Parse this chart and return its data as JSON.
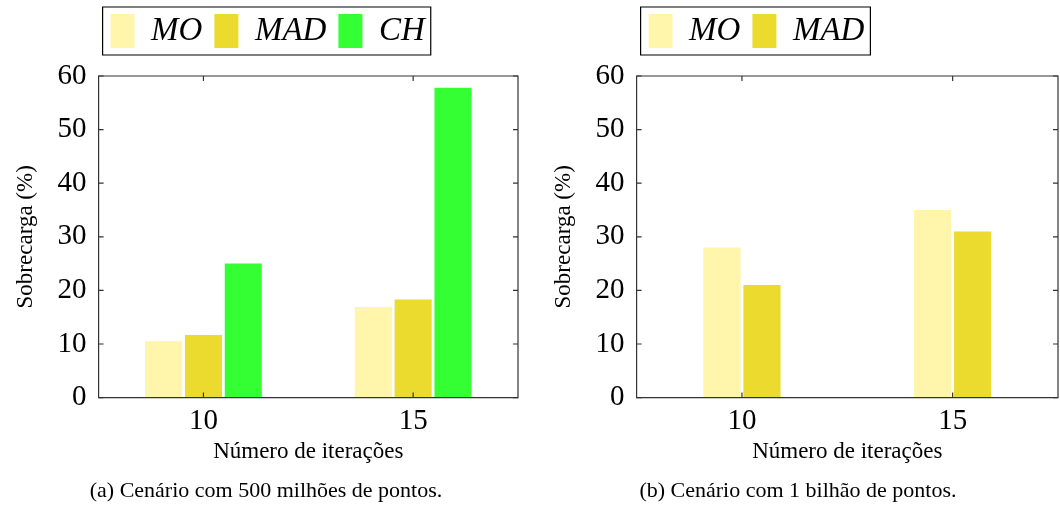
{
  "chart_data": [
    {
      "type": "bar",
      "categories": [
        "10",
        "15"
      ],
      "series": [
        {
          "name": "MO",
          "color": "#fff5ab",
          "values": [
            10.5,
            16.9
          ]
        },
        {
          "name": "MAD",
          "color": "#ebdb2f",
          "values": [
            11.7,
            18.3
          ]
        },
        {
          "name": "CH",
          "color": "#33ff33",
          "values": [
            25.0,
            57.8
          ]
        }
      ],
      "ylim": [
        0,
        60
      ],
      "yticks": [
        0,
        10,
        20,
        30,
        40,
        50,
        60
      ],
      "xlabel": "Número de iterações",
      "ylabel": "Sobrecarga (%)",
      "legend": "top left",
      "annotations": [
        "(a) Cenário com 500 milhões de pontos."
      ]
    },
    {
      "type": "bar",
      "categories": [
        "10",
        "15"
      ],
      "series": [
        {
          "name": "MO",
          "color": "#fff5ab",
          "values": [
            28.0,
            35.0
          ]
        },
        {
          "name": "MAD",
          "color": "#ebdb2f",
          "values": [
            21.0,
            31.0
          ]
        }
      ],
      "ylim": [
        0,
        60
      ],
      "yticks": [
        0,
        10,
        20,
        30,
        40,
        50,
        60
      ],
      "xlabel": "Número de iterações",
      "ylabel": "Sobrecarga (%)",
      "legend": "top left",
      "annotations": [
        "(b) Cenário com 1 bilhão de pontos."
      ]
    }
  ]
}
